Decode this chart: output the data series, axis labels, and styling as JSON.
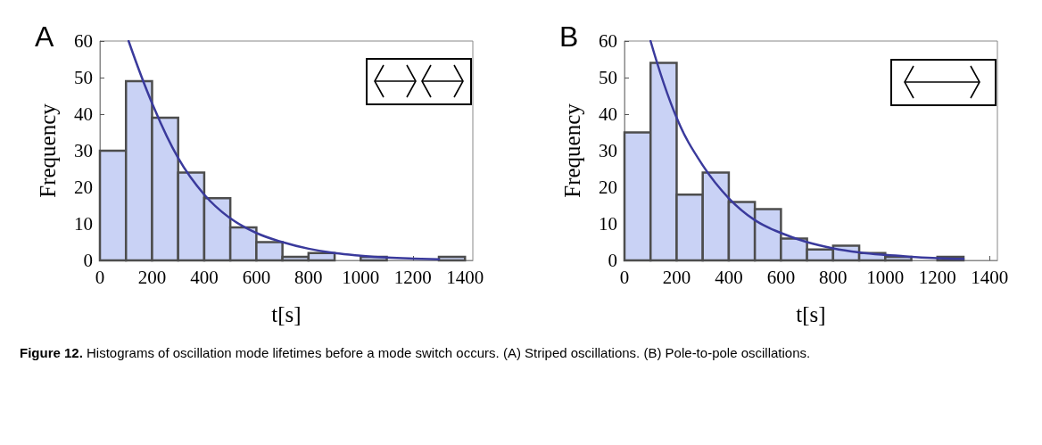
{
  "chart_data": [
    {
      "type": "histogram",
      "title": "A",
      "xlabel": "t[s]",
      "ylabel": "Frequency",
      "xlim": [
        0,
        1430
      ],
      "ylim": [
        0,
        60
      ],
      "xticks": [
        0,
        200,
        400,
        600,
        800,
        1000,
        1200,
        1400
      ],
      "yticks": [
        0,
        10,
        20,
        30,
        40,
        50,
        60
      ],
      "grid": false,
      "marker": "none",
      "line_style": "solid",
      "annotations": [
        "Figure 12.",
        "Histograms of oscillation mode lifetimes before a mode switch occurs. (A) Striped oscillations. (B) Pole-to-pole oscillations."
      ],
      "series": [
        {
          "type": "histogram",
          "color": "#c9d2f5",
          "bins": [
            0,
            100,
            200,
            300,
            400,
            500,
            600,
            700,
            800,
            900,
            1000,
            1100,
            1200,
            1300,
            1400
          ],
          "values": [
            30,
            49,
            39,
            24,
            17,
            9,
            5,
            1,
            2,
            0,
            1,
            0,
            0,
            1
          ]
        },
        {
          "type": "line",
          "color": "#3a3a9c",
          "x": [
            110,
            200,
            300,
            400,
            500,
            600,
            700,
            800,
            900,
            1000,
            1100,
            1200,
            1300
          ],
          "values": [
            60,
            43,
            28,
            18,
            11.5,
            7.5,
            5,
            3.2,
            2,
            1.3,
            0.8,
            0.5,
            0.3
          ]
        }
      ]
    },
    {
      "type": "histogram",
      "title": "B",
      "xlabel": "t[s]",
      "ylabel": "Frequency",
      "xlim": [
        0,
        1430
      ],
      "ylim": [
        0,
        60
      ],
      "xticks": [
        0,
        200,
        400,
        600,
        800,
        1000,
        1200,
        1400
      ],
      "yticks": [
        0,
        10,
        20,
        30,
        40,
        50,
        60
      ],
      "grid": false,
      "marker": "none",
      "line_style": "solid",
      "series": [
        {
          "type": "histogram",
          "color": "#c9d2f5",
          "bins": [
            0,
            100,
            200,
            300,
            400,
            500,
            600,
            700,
            800,
            900,
            1000,
            1100,
            1200,
            1300
          ],
          "values": [
            35,
            54,
            18,
            24,
            16,
            14,
            6,
            3,
            4,
            2,
            1,
            0,
            1
          ]
        },
        {
          "type": "line",
          "color": "#3a3a9c",
          "x": [
            100,
            200,
            300,
            400,
            500,
            600,
            700,
            800,
            900,
            1000,
            1100,
            1200,
            1300
          ],
          "values": [
            60,
            39,
            26,
            17,
            11,
            7.5,
            5,
            3.3,
            2.2,
            1.5,
            1,
            0.6,
            0.4
          ]
        }
      ]
    }
  ]
}
